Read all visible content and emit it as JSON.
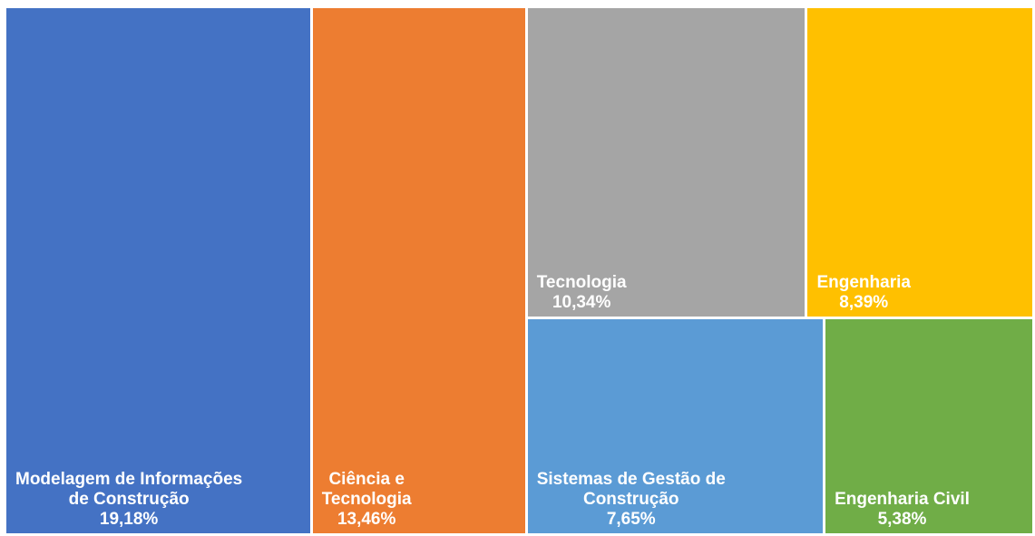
{
  "chart_data": {
    "type": "treemap",
    "categories": [
      "Modelagem de Informações\nde Construção",
      "Ciência e\nTecnologia",
      "Tecnologia",
      "Engenharia",
      "Sistemas de Gestão de\nConstrução",
      "Engenharia Civil"
    ],
    "values": [
      19.18,
      13.46,
      10.34,
      8.39,
      7.65,
      5.38
    ],
    "value_labels": [
      "19,18%",
      "13,46%",
      "10,34%",
      "8,39%",
      "7,65%",
      "5,38%"
    ],
    "colors": [
      "#4472c4",
      "#ed7d31",
      "#a5a5a5",
      "#ffc000",
      "#5b9bd5",
      "#70ad47"
    ]
  }
}
